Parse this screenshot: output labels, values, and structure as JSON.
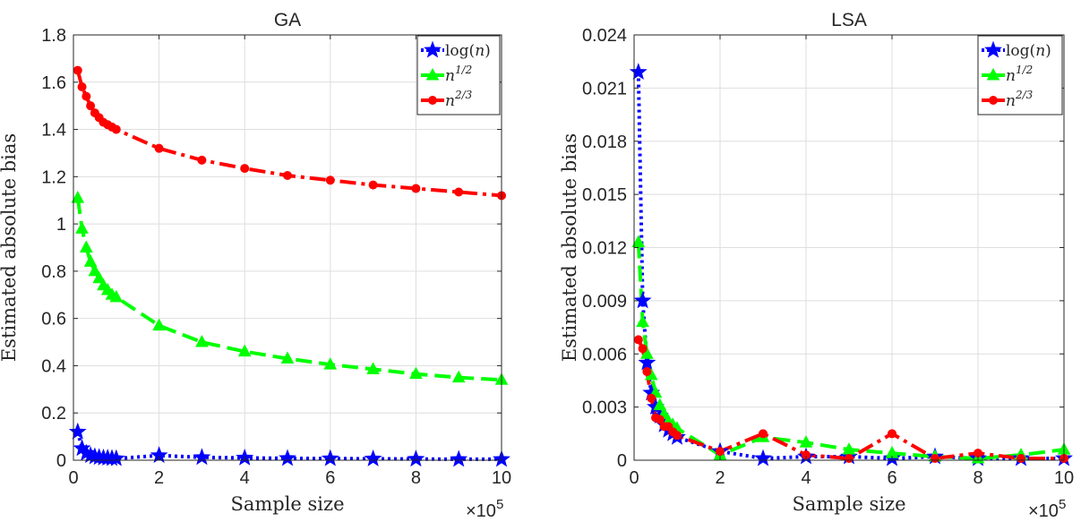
{
  "chart_data": [
    {
      "type": "line",
      "title": "GA",
      "xlabel": "Sample size",
      "ylabel": "Estimated absolute bias",
      "x_multiplier": "×10",
      "x_multiplier_exp": "5",
      "xlim": [
        0,
        10
      ],
      "ylim": [
        0,
        1.8
      ],
      "xticks": [
        "0",
        "2",
        "4",
        "6",
        "8",
        "10"
      ],
      "yticks": [
        "0",
        "0.2",
        "0.4",
        "0.6",
        "0.8",
        "1",
        "1.2",
        "1.4",
        "1.6",
        "1.8"
      ],
      "ytick_values": [
        0,
        0.2,
        0.4,
        0.6,
        0.8,
        1.0,
        1.2,
        1.4,
        1.6,
        1.8
      ],
      "grid": true,
      "legend_position": "top-right",
      "x": [
        0.1,
        0.2,
        0.3,
        0.4,
        0.5,
        0.6,
        0.7,
        0.8,
        0.9,
        1,
        2,
        3,
        4,
        5,
        6,
        7,
        8,
        9,
        10
      ],
      "series": [
        {
          "name": "log(n)",
          "legend_main": "log(",
          "legend_var": "n",
          "legend_close": ")",
          "legend_sup": "",
          "color": "#0000ff",
          "dash": "3,4",
          "marker": "star",
          "values": [
            0.12,
            0.05,
            0.03,
            0.02,
            0.015,
            0.012,
            0.01,
            0.009,
            0.008,
            0.007,
            0.02,
            0.012,
            0.01,
            0.008,
            0.007,
            0.006,
            0.005,
            0.004,
            0.004
          ]
        },
        {
          "name": "n^1/2",
          "legend_main": "",
          "legend_var": "n",
          "legend_close": "",
          "legend_sup": "1/2",
          "color": "#00ff00",
          "dash": "18,8",
          "marker": "triangle",
          "values": [
            1.11,
            0.98,
            0.9,
            0.84,
            0.8,
            0.77,
            0.74,
            0.72,
            0.7,
            0.69,
            0.57,
            0.5,
            0.46,
            0.43,
            0.405,
            0.385,
            0.365,
            0.35,
            0.34
          ]
        },
        {
          "name": "n^2/3",
          "legend_main": "",
          "legend_var": "n",
          "legend_close": "",
          "legend_sup": "2/3",
          "color": "#ff0000",
          "dash": "18,6,4,6",
          "marker": "circle",
          "values": [
            1.65,
            1.58,
            1.54,
            1.5,
            1.47,
            1.45,
            1.43,
            1.42,
            1.41,
            1.4,
            1.32,
            1.27,
            1.235,
            1.205,
            1.185,
            1.165,
            1.15,
            1.135,
            1.12
          ]
        }
      ]
    },
    {
      "type": "line",
      "title": "LSA",
      "xlabel": "Sample size",
      "ylabel": "Estimated absolute bias",
      "x_multiplier": "×10",
      "x_multiplier_exp": "5",
      "xlim": [
        0,
        10
      ],
      "ylim": [
        0,
        0.024
      ],
      "xticks": [
        "0",
        "2",
        "4",
        "6",
        "8",
        "10"
      ],
      "yticks": [
        "0",
        "0.003",
        "0.006",
        "0.009",
        "0.012",
        "0.015",
        "0.018",
        "0.021",
        "0.024"
      ],
      "ytick_values": [
        0,
        0.003,
        0.006,
        0.009,
        0.012,
        0.015,
        0.018,
        0.021,
        0.024
      ],
      "grid": true,
      "legend_position": "top-right",
      "x": [
        0.1,
        0.2,
        0.3,
        0.4,
        0.5,
        0.6,
        0.7,
        0.8,
        0.9,
        1,
        2,
        3,
        4,
        5,
        6,
        7,
        8,
        9,
        10
      ],
      "series": [
        {
          "name": "log(n)",
          "legend_main": "log(",
          "legend_var": "n",
          "legend_close": ")",
          "legend_sup": "",
          "color": "#0000ff",
          "dash": "3,4",
          "marker": "star",
          "values": [
            0.0219,
            0.009,
            0.0055,
            0.0038,
            0.003,
            0.0025,
            0.002,
            0.0017,
            0.0015,
            0.0013,
            0.0005,
            0.0001,
            0.0002,
            0.0002,
            0.0001,
            0.0002,
            0.0001,
            0.0001,
            0.0001
          ]
        },
        {
          "name": "n^1/2",
          "legend_main": "",
          "legend_var": "n",
          "legend_close": "",
          "legend_sup": "1/2",
          "color": "#00ff00",
          "dash": "18,8",
          "marker": "triangle",
          "values": [
            0.0123,
            0.0078,
            0.006,
            0.0048,
            0.0038,
            0.0031,
            0.0026,
            0.0022,
            0.002,
            0.0018,
            0.0003,
            0.0013,
            0.001,
            0.0006,
            0.0004,
            0.0002,
            0.0001,
            0.0003,
            0.0006
          ]
        },
        {
          "name": "n^2/3",
          "legend_main": "",
          "legend_var": "n",
          "legend_close": "",
          "legend_sup": "2/3",
          "color": "#ff0000",
          "dash": "18,6,4,6",
          "marker": "circle",
          "values": [
            0.0068,
            0.0063,
            0.005,
            0.0035,
            0.0024,
            0.0023,
            0.0019,
            0.0019,
            0.0016,
            0.0014,
            0.0005,
            0.0015,
            0.0003,
            0.0001,
            0.0015,
            0.0001,
            0.0004,
            0.0001,
            0.0001
          ]
        }
      ]
    }
  ]
}
